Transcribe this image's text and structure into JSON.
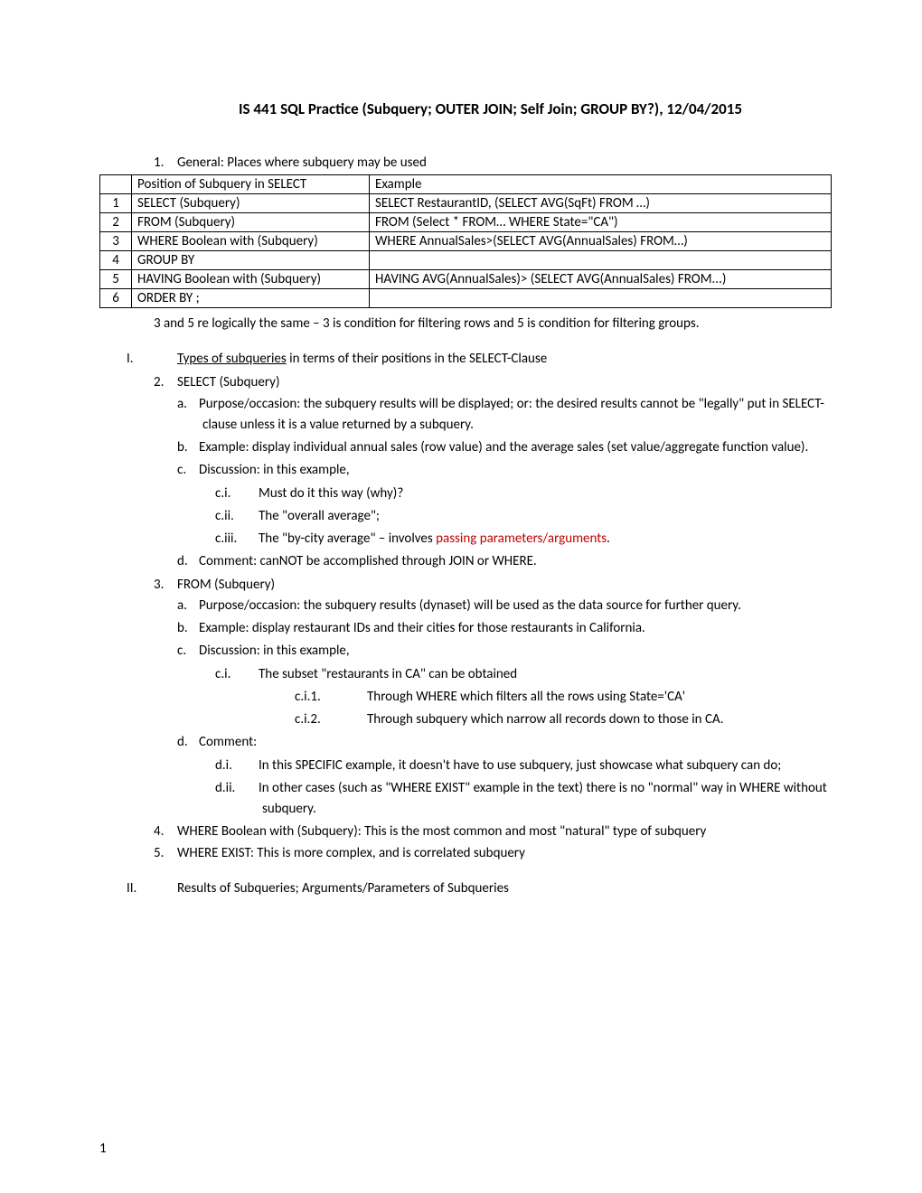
{
  "title": "IS 441 SQL Practice (Subquery; OUTER JOIN; Self Join; GROUP BY?), 12/04/2015",
  "list1": {
    "num": "1.",
    "text": "General: Places where subquery may be used"
  },
  "table": {
    "headers": {
      "pos": "Position of Subquery in SELECT",
      "ex": "Example"
    },
    "rows": [
      {
        "n": "1",
        "pos": "SELECT (Subquery)",
        "ex": "SELECT RestaurantID, (SELECT AVG(SqFt) FROM …)"
      },
      {
        "n": "2",
        "pos": "FROM (Subquery)",
        "ex": "FROM (Select * FROM… WHERE State=\"CA\")"
      },
      {
        "n": "3",
        "pos": "WHERE Boolean with (Subquery)",
        "ex": "WHERE AnnualSales>(SELECT AVG(AnnualSales) FROM…)"
      },
      {
        "n": "4",
        "pos": "GROUP BY",
        "ex": ""
      },
      {
        "n": "5",
        "pos": "HAVING Boolean with (Subquery)",
        "ex": "HAVING AVG(AnnualSales)> (SELECT AVG(AnnualSales) FROM...)"
      },
      {
        "n": "6",
        "pos": "ORDER BY ;",
        "ex": ""
      }
    ]
  },
  "para1": "3 and 5 re logically the same – 3 is condition for filtering rows and 5 is condition for filtering groups.",
  "roman1": {
    "rn": "I.",
    "ul": "Types of subqueries",
    "rest": " in terms of their positions in the SELECT-Clause"
  },
  "item2": {
    "num": "2.",
    "text": "SELECT (Subquery)"
  },
  "i2a": {
    "lbl": "a.",
    "text": "Purpose/occasion: the subquery results will be displayed; or: the desired results cannot be \"legally\" put in SELECT-clause unless it is a value returned by a subquery."
  },
  "i2b": {
    "lbl": "b.",
    "text": "Example: display individual annual sales (row value) and the average sales (set value/aggregate function value)."
  },
  "i2c": {
    "lbl": "c.",
    "text": "Discussion: in this example,"
  },
  "i2ci": {
    "lbl": "c.i.",
    "text": "Must do it this way (why)?"
  },
  "i2cii": {
    "lbl": "c.ii.",
    "text": "The \"overall average\";"
  },
  "i2ciii": {
    "lbl": "c.iii.",
    "pre": "The \"by-city average\" – involves ",
    "red": "passing parameters/arguments",
    "post": "."
  },
  "i2d": {
    "lbl": "d.",
    "text": "Comment: canNOT be accomplished through JOIN or WHERE."
  },
  "item3": {
    "num": "3.",
    "text": "FROM (Subquery)"
  },
  "i3a": {
    "lbl": "a.",
    "text": "Purpose/occasion: the subquery results (dynaset) will be used as the data source for further query."
  },
  "i3b": {
    "lbl": "b.",
    "text": "Example: display restaurant IDs and their cities for those restaurants in California."
  },
  "i3c": {
    "lbl": "c.",
    "text": "Discussion: in this example,"
  },
  "i3ci": {
    "lbl": "c.i.",
    "text": "The subset \"restaurants in CA\" can be obtained"
  },
  "i3ci1": {
    "lbl": "c.i.1.",
    "text": "Through WHERE which filters all the rows using State='CA'"
  },
  "i3ci2": {
    "lbl": "c.i.2.",
    "text": "Through subquery which narrow all records down to those in CA."
  },
  "i3d": {
    "lbl": "d.",
    "text": "Comment:"
  },
  "i3di": {
    "lbl": "d.i.",
    "text": "In this SPECIFIC example, it doesn't have to use subquery, just showcase what subquery can do;"
  },
  "i3dii": {
    "lbl": "d.ii.",
    "text": "In other cases (such as \"WHERE EXIST\" example in the text) there is no \"normal\" way in WHERE without subquery."
  },
  "item4": {
    "num": "4.",
    "text": "WHERE Boolean with (Subquery): This is the most common and most \"natural\" type of subquery"
  },
  "item5": {
    "num": "5.",
    "text": "WHERE EXIST: This is more complex, and is correlated subquery"
  },
  "roman2": {
    "rn": "II.",
    "text": "Results of Subqueries; Arguments/Parameters of Subqueries"
  },
  "pagenum": "1"
}
